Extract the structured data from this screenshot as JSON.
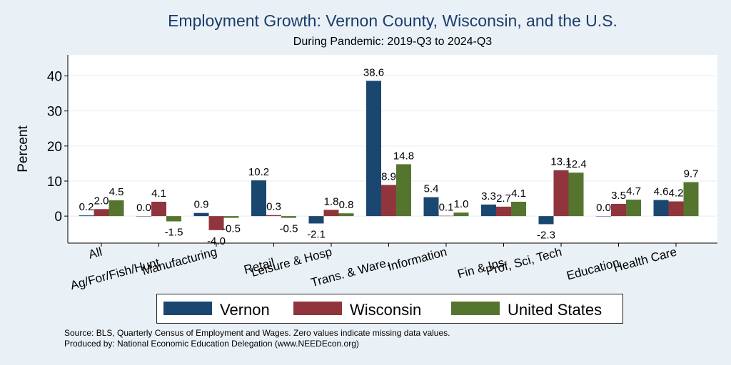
{
  "chart_data": {
    "type": "bar",
    "title": "Employment Growth: Vernon County, Wisconsin, and the U.S.",
    "subtitle": "During Pandemic: 2019-Q3 to 2024-Q3",
    "ylabel": "Percent",
    "xlabel": "",
    "ylim": [
      -7.7,
      46
    ],
    "yticks": [
      0,
      10,
      20,
      30,
      40
    ],
    "grid": true,
    "legend_position": "bottom",
    "categories": [
      "All",
      "Ag/For/Fish/Hunt",
      "Manufacturing",
      "Retail",
      "Leisure & Hosp",
      "Trans. & Ware.",
      "Information",
      "Fin & Ins",
      "Prof, Sci, Tech",
      "Education",
      "Health Care"
    ],
    "series": [
      {
        "name": "Vernon",
        "color": "#1a476f",
        "values": [
          0.2,
          0.0,
          0.9,
          10.2,
          -2.1,
          38.6,
          5.4,
          3.3,
          -2.3,
          0.0,
          4.6
        ]
      },
      {
        "name": "Wisconsin",
        "color": "#90353b",
        "values": [
          2.0,
          4.1,
          -4.0,
          0.3,
          1.8,
          8.9,
          0.1,
          2.7,
          13.1,
          3.5,
          4.2
        ]
      },
      {
        "name": "United States",
        "color": "#55752f",
        "values": [
          4.5,
          -1.5,
          -0.5,
          -0.5,
          0.8,
          14.8,
          1.0,
          4.1,
          12.4,
          4.7,
          9.7
        ]
      }
    ]
  },
  "source": {
    "line1": "Source: BLS, Quarterly Census of Employment and Wages. Zero values indicate missing data values.",
    "line2": "Produced by: National Economic Education Delegation (www.NEEDEcon.org)"
  }
}
